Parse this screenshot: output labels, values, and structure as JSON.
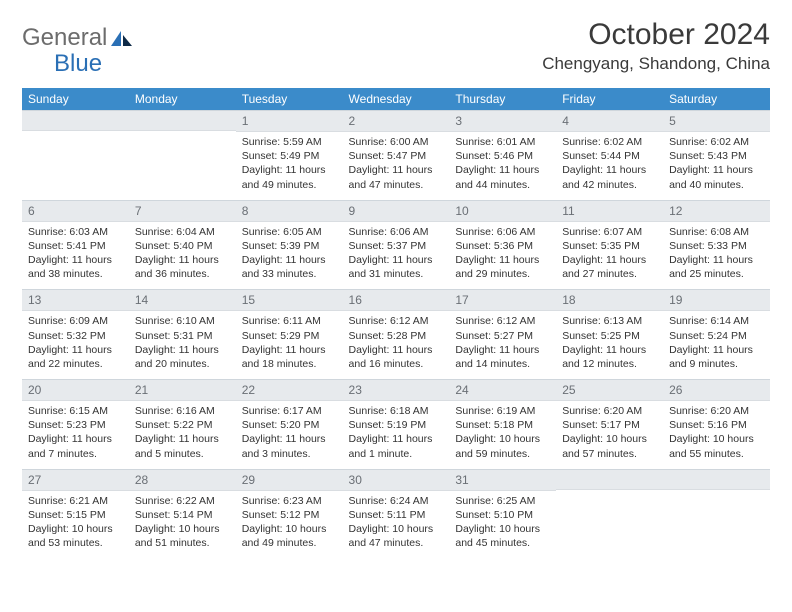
{
  "brand": {
    "part1": "General",
    "part2": "Blue"
  },
  "title": "October 2024",
  "location": "Chengyang, Shandong, China",
  "colors": {
    "header_bg": "#3b8bca",
    "header_text": "#ffffff",
    "band_bg": "#e7eaed",
    "band_text": "#6a6f75",
    "body_text": "#333333",
    "logo_gray": "#6c6c6c",
    "logo_blue": "#2a6fb5",
    "rule": "#cfd6dc"
  },
  "typography": {
    "title_fontsize": 30,
    "location_fontsize": 17,
    "dayhead_fontsize": 12,
    "daynum_fontsize": 12,
    "body_fontsize": 10.5
  },
  "dayNames": [
    "Sunday",
    "Monday",
    "Tuesday",
    "Wednesday",
    "Thursday",
    "Friday",
    "Saturday"
  ],
  "weeks": [
    [
      {
        "n": "",
        "sunrise": "",
        "sunset": "",
        "daylight": ""
      },
      {
        "n": "",
        "sunrise": "",
        "sunset": "",
        "daylight": ""
      },
      {
        "n": "1",
        "sunrise": "Sunrise: 5:59 AM",
        "sunset": "Sunset: 5:49 PM",
        "daylight": "Daylight: 11 hours and 49 minutes."
      },
      {
        "n": "2",
        "sunrise": "Sunrise: 6:00 AM",
        "sunset": "Sunset: 5:47 PM",
        "daylight": "Daylight: 11 hours and 47 minutes."
      },
      {
        "n": "3",
        "sunrise": "Sunrise: 6:01 AM",
        "sunset": "Sunset: 5:46 PM",
        "daylight": "Daylight: 11 hours and 44 minutes."
      },
      {
        "n": "4",
        "sunrise": "Sunrise: 6:02 AM",
        "sunset": "Sunset: 5:44 PM",
        "daylight": "Daylight: 11 hours and 42 minutes."
      },
      {
        "n": "5",
        "sunrise": "Sunrise: 6:02 AM",
        "sunset": "Sunset: 5:43 PM",
        "daylight": "Daylight: 11 hours and 40 minutes."
      }
    ],
    [
      {
        "n": "6",
        "sunrise": "Sunrise: 6:03 AM",
        "sunset": "Sunset: 5:41 PM",
        "daylight": "Daylight: 11 hours and 38 minutes."
      },
      {
        "n": "7",
        "sunrise": "Sunrise: 6:04 AM",
        "sunset": "Sunset: 5:40 PM",
        "daylight": "Daylight: 11 hours and 36 minutes."
      },
      {
        "n": "8",
        "sunrise": "Sunrise: 6:05 AM",
        "sunset": "Sunset: 5:39 PM",
        "daylight": "Daylight: 11 hours and 33 minutes."
      },
      {
        "n": "9",
        "sunrise": "Sunrise: 6:06 AM",
        "sunset": "Sunset: 5:37 PM",
        "daylight": "Daylight: 11 hours and 31 minutes."
      },
      {
        "n": "10",
        "sunrise": "Sunrise: 6:06 AM",
        "sunset": "Sunset: 5:36 PM",
        "daylight": "Daylight: 11 hours and 29 minutes."
      },
      {
        "n": "11",
        "sunrise": "Sunrise: 6:07 AM",
        "sunset": "Sunset: 5:35 PM",
        "daylight": "Daylight: 11 hours and 27 minutes."
      },
      {
        "n": "12",
        "sunrise": "Sunrise: 6:08 AM",
        "sunset": "Sunset: 5:33 PM",
        "daylight": "Daylight: 11 hours and 25 minutes."
      }
    ],
    [
      {
        "n": "13",
        "sunrise": "Sunrise: 6:09 AM",
        "sunset": "Sunset: 5:32 PM",
        "daylight": "Daylight: 11 hours and 22 minutes."
      },
      {
        "n": "14",
        "sunrise": "Sunrise: 6:10 AM",
        "sunset": "Sunset: 5:31 PM",
        "daylight": "Daylight: 11 hours and 20 minutes."
      },
      {
        "n": "15",
        "sunrise": "Sunrise: 6:11 AM",
        "sunset": "Sunset: 5:29 PM",
        "daylight": "Daylight: 11 hours and 18 minutes."
      },
      {
        "n": "16",
        "sunrise": "Sunrise: 6:12 AM",
        "sunset": "Sunset: 5:28 PM",
        "daylight": "Daylight: 11 hours and 16 minutes."
      },
      {
        "n": "17",
        "sunrise": "Sunrise: 6:12 AM",
        "sunset": "Sunset: 5:27 PM",
        "daylight": "Daylight: 11 hours and 14 minutes."
      },
      {
        "n": "18",
        "sunrise": "Sunrise: 6:13 AM",
        "sunset": "Sunset: 5:25 PM",
        "daylight": "Daylight: 11 hours and 12 minutes."
      },
      {
        "n": "19",
        "sunrise": "Sunrise: 6:14 AM",
        "sunset": "Sunset: 5:24 PM",
        "daylight": "Daylight: 11 hours and 9 minutes."
      }
    ],
    [
      {
        "n": "20",
        "sunrise": "Sunrise: 6:15 AM",
        "sunset": "Sunset: 5:23 PM",
        "daylight": "Daylight: 11 hours and 7 minutes."
      },
      {
        "n": "21",
        "sunrise": "Sunrise: 6:16 AM",
        "sunset": "Sunset: 5:22 PM",
        "daylight": "Daylight: 11 hours and 5 minutes."
      },
      {
        "n": "22",
        "sunrise": "Sunrise: 6:17 AM",
        "sunset": "Sunset: 5:20 PM",
        "daylight": "Daylight: 11 hours and 3 minutes."
      },
      {
        "n": "23",
        "sunrise": "Sunrise: 6:18 AM",
        "sunset": "Sunset: 5:19 PM",
        "daylight": "Daylight: 11 hours and 1 minute."
      },
      {
        "n": "24",
        "sunrise": "Sunrise: 6:19 AM",
        "sunset": "Sunset: 5:18 PM",
        "daylight": "Daylight: 10 hours and 59 minutes."
      },
      {
        "n": "25",
        "sunrise": "Sunrise: 6:20 AM",
        "sunset": "Sunset: 5:17 PM",
        "daylight": "Daylight: 10 hours and 57 minutes."
      },
      {
        "n": "26",
        "sunrise": "Sunrise: 6:20 AM",
        "sunset": "Sunset: 5:16 PM",
        "daylight": "Daylight: 10 hours and 55 minutes."
      }
    ],
    [
      {
        "n": "27",
        "sunrise": "Sunrise: 6:21 AM",
        "sunset": "Sunset: 5:15 PM",
        "daylight": "Daylight: 10 hours and 53 minutes."
      },
      {
        "n": "28",
        "sunrise": "Sunrise: 6:22 AM",
        "sunset": "Sunset: 5:14 PM",
        "daylight": "Daylight: 10 hours and 51 minutes."
      },
      {
        "n": "29",
        "sunrise": "Sunrise: 6:23 AM",
        "sunset": "Sunset: 5:12 PM",
        "daylight": "Daylight: 10 hours and 49 minutes."
      },
      {
        "n": "30",
        "sunrise": "Sunrise: 6:24 AM",
        "sunset": "Sunset: 5:11 PM",
        "daylight": "Daylight: 10 hours and 47 minutes."
      },
      {
        "n": "31",
        "sunrise": "Sunrise: 6:25 AM",
        "sunset": "Sunset: 5:10 PM",
        "daylight": "Daylight: 10 hours and 45 minutes."
      },
      {
        "n": "",
        "sunrise": "",
        "sunset": "",
        "daylight": ""
      },
      {
        "n": "",
        "sunrise": "",
        "sunset": "",
        "daylight": ""
      }
    ]
  ]
}
